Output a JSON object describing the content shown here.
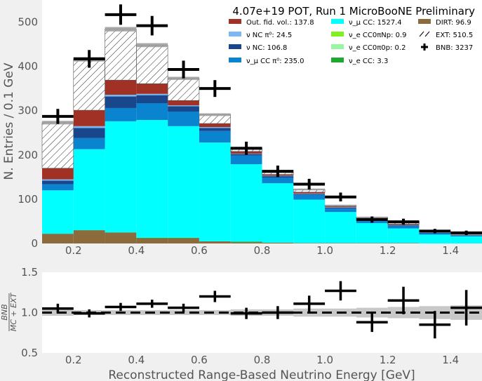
{
  "chart_data": [
    {
      "type": "bar",
      "stacked": true,
      "title": "4.07e+19 POT, Run 1 MicroBooNE Preliminary",
      "xlabel": "",
      "ylabel": "N. Entries  /  0.1 GeV",
      "xlim": [
        0.1,
        1.5
      ],
      "ylim": [
        0,
        550
      ],
      "xticks": [
        "0.2",
        "0.4",
        "0.6",
        "0.8",
        "1.0",
        "1.2",
        "1.4"
      ],
      "yticks": [
        "0",
        "100",
        "200",
        "300",
        "400",
        "500"
      ],
      "bin_edges": [
        0.1,
        0.2,
        0.3,
        0.4,
        0.5,
        0.6,
        0.7,
        0.8,
        0.9,
        1.0,
        1.1,
        1.2,
        1.3,
        1.4,
        1.5
      ],
      "legend_position": "top-right",
      "series": [
        {
          "name": "DIRT: 96.9",
          "color": "#8b6a3b",
          "values": [
            22,
            30,
            25,
            12,
            12,
            5,
            3,
            2,
            1,
            1,
            1,
            1,
            0,
            0
          ]
        },
        {
          "name": "ν_e CC: 3.3",
          "color": "#1fa82f",
          "values": [
            0,
            0,
            0,
            1,
            1,
            0,
            1,
            0,
            0,
            0,
            0,
            0,
            0,
            0
          ]
        },
        {
          "name": "ν_e CC0π0p: 0.2",
          "color": "#98f5a0",
          "values": [
            0,
            0,
            0,
            0,
            0,
            0,
            0,
            0,
            0,
            0,
            0,
            0,
            0,
            0
          ]
        },
        {
          "name": "ν_e CC0πNp: 0.9",
          "color": "#80f020",
          "values": [
            0,
            0,
            0,
            0,
            0,
            0,
            0,
            0,
            0,
            0,
            0,
            0,
            0,
            0
          ]
        },
        {
          "name": "ν_μ CC: 1527.4",
          "color": "#00ffff",
          "values": [
            98,
            183,
            251,
            266,
            252,
            223,
            175,
            134,
            98,
            70,
            45,
            33,
            20,
            16
          ]
        },
        {
          "name": "ν_μ CC π⁰: 235.0",
          "color": "#0b84cf",
          "values": [
            14,
            25,
            30,
            38,
            33,
            26,
            20,
            13,
            11,
            8,
            6,
            5,
            3,
            2
          ]
        },
        {
          "name": "ν NC: 106.8",
          "color": "#1a478c",
          "values": [
            8,
            23,
            26,
            18,
            12,
            7,
            3,
            3,
            2,
            2,
            2,
            2,
            1,
            1
          ]
        },
        {
          "name": "ν NC π⁰: 24.5",
          "color": "#79b8f2",
          "values": [
            3,
            4,
            4,
            3,
            2,
            2,
            1,
            1,
            1,
            1,
            1,
            1,
            1,
            0
          ]
        },
        {
          "name": "Out. fid. vol.: 137.8",
          "color": "#a13124",
          "values": [
            25,
            36,
            33,
            23,
            11,
            8,
            5,
            3,
            3,
            2,
            2,
            2,
            1,
            1
          ]
        },
        {
          "name": "EXT: 510.5",
          "color": "hatch",
          "values": [
            103,
            115,
            115,
            87,
            50,
            20,
            8,
            5,
            6,
            2,
            2,
            6,
            0,
            0
          ]
        }
      ],
      "mc_error": [
        8,
        10,
        10,
        9,
        7,
        6,
        5,
        4,
        4,
        3,
        3,
        3,
        2,
        2
      ],
      "data_series": {
        "name": "BNB: 3237",
        "x": [
          0.15,
          0.25,
          0.35,
          0.45,
          0.55,
          0.65,
          0.75,
          0.85,
          0.95,
          1.05,
          1.15,
          1.25,
          1.35,
          1.45
        ],
        "y": [
          287,
          417,
          517,
          492,
          393,
          350,
          215,
          163,
          134,
          105,
          54,
          49,
          28,
          24
        ],
        "yerr": [
          17,
          20,
          23,
          22,
          20,
          19,
          15,
          13,
          12,
          10,
          7,
          7,
          5,
          5
        ]
      },
      "legend": [
        {
          "label": "Out. fid. vol.: 137.8",
          "color": "#a13124",
          "kind": "box"
        },
        {
          "label": "ν NC π⁰: 24.5",
          "color": "#79b8f2",
          "kind": "box"
        },
        {
          "label": "ν NC: 106.8",
          "color": "#1a478c",
          "kind": "box"
        },
        {
          "label": "ν_μ CC π⁰: 235.0",
          "color": "#0b84cf",
          "kind": "box"
        },
        {
          "label": "ν_μ CC: 1527.4",
          "color": "#00ffff",
          "kind": "box"
        },
        {
          "label": "ν_e CC0πNp: 0.9",
          "color": "#80f020",
          "kind": "box"
        },
        {
          "label": "ν_e CC0π0p: 0.2",
          "color": "#98f5a0",
          "kind": "box"
        },
        {
          "label": "ν_e CC: 3.3",
          "color": "#1fa82f",
          "kind": "box"
        },
        {
          "label": "DIRT: 96.9",
          "color": "#8b6a3b",
          "kind": "box"
        },
        {
          "label": "EXT: 510.5",
          "color": "#000000",
          "kind": "hatch"
        },
        {
          "label": "BNB: 3237",
          "color": "#000000",
          "kind": "cross"
        }
      ]
    },
    {
      "type": "scatter",
      "title": "",
      "xlabel": "Reconstructed Range-Based Neutrino Energy [GeV]",
      "ylabel": "BNB / (MC + EXT)",
      "xlim": [
        0.1,
        1.5
      ],
      "ylim": [
        0.5,
        1.5
      ],
      "xticks": [
        "0.2",
        "0.4",
        "0.6",
        "0.8",
        "1.0",
        "1.2",
        "1.4"
      ],
      "yticks": [
        "0.5",
        "1.0",
        "1.5"
      ],
      "reference_line": 1.0,
      "ratio": {
        "x": [
          0.15,
          0.25,
          0.35,
          0.45,
          0.55,
          0.65,
          0.75,
          0.85,
          0.95,
          1.05,
          1.15,
          1.25,
          1.35,
          1.45
        ],
        "y": [
          1.05,
          0.99,
          1.07,
          1.11,
          1.06,
          1.2,
          0.99,
          1.0,
          1.11,
          1.27,
          0.88,
          1.15,
          0.85,
          1.06
        ],
        "yerr": [
          0.06,
          0.05,
          0.05,
          0.05,
          0.05,
          0.07,
          0.07,
          0.08,
          0.1,
          0.12,
          0.12,
          0.17,
          0.17,
          0.22
        ]
      },
      "mc_band": [
        0.04,
        0.03,
        0.03,
        0.03,
        0.03,
        0.03,
        0.04,
        0.04,
        0.05,
        0.05,
        0.06,
        0.07,
        0.08,
        0.09
      ]
    }
  ]
}
